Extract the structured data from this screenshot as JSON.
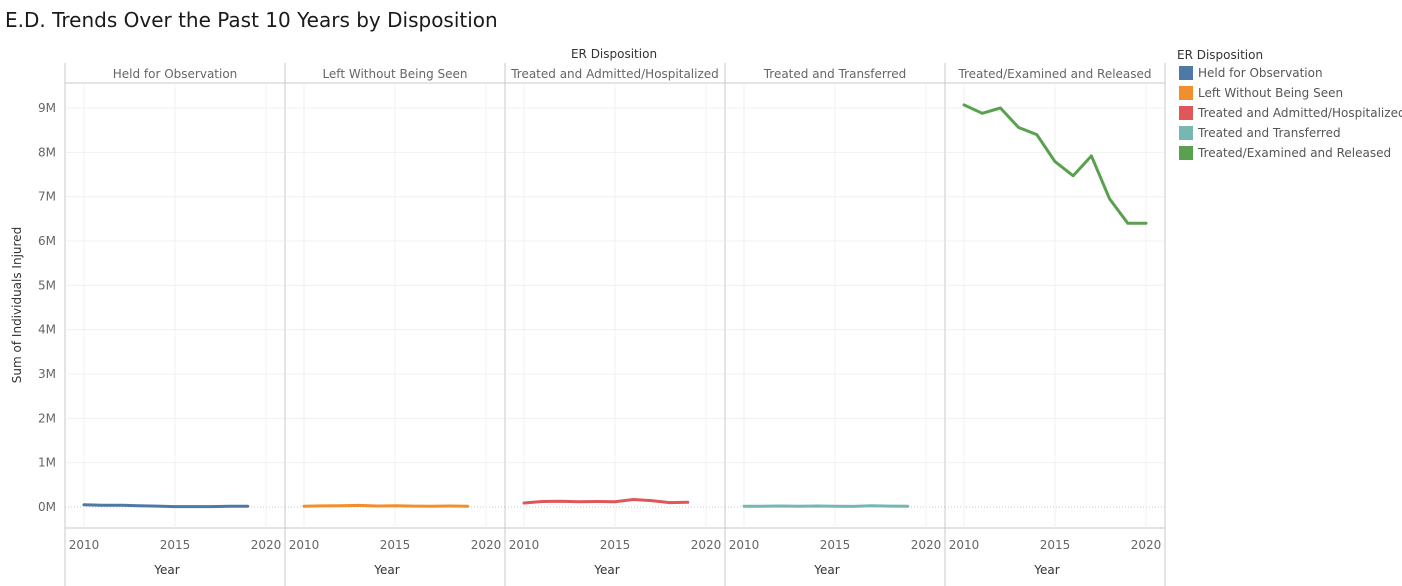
{
  "chart_data": {
    "type": "line",
    "title": "E.D. Trends Over the Past 10 Years by Disposition",
    "column_header": "ER Disposition",
    "xlabel": "Year",
    "ylabel": "Sum of Individuals Injured",
    "xlim": [
      2010,
      2020
    ],
    "ylim": [
      0,
      9500000
    ],
    "x_ticks": [
      2010,
      2015,
      2020
    ],
    "y_ticks": [
      {
        "value": 0,
        "label": "0M"
      },
      {
        "value": 1000000,
        "label": "1M"
      },
      {
        "value": 2000000,
        "label": "2M"
      },
      {
        "value": 3000000,
        "label": "3M"
      },
      {
        "value": 4000000,
        "label": "4M"
      },
      {
        "value": 5000000,
        "label": "5M"
      },
      {
        "value": 6000000,
        "label": "6M"
      },
      {
        "value": 7000000,
        "label": "7M"
      },
      {
        "value": 8000000,
        "label": "8M"
      },
      {
        "value": 9000000,
        "label": "9M"
      }
    ],
    "x": [
      2010,
      2011,
      2012,
      2013,
      2014,
      2015,
      2016,
      2017,
      2018,
      2019
    ],
    "legend_title": "ER Disposition",
    "legend_position": "right",
    "grid": true,
    "series": [
      {
        "name": "Held for Observation",
        "color": "#4e79a7",
        "x": [
          2010,
          2011,
          2012,
          2013,
          2014,
          2015,
          2016,
          2017,
          2018,
          2019
        ],
        "values": [
          50000,
          38000,
          40000,
          30000,
          20000,
          10000,
          8000,
          9000,
          18000,
          15000
        ]
      },
      {
        "name": "Left Without Being Seen",
        "color": "#f28e2b",
        "x": [
          2010,
          2011,
          2012,
          2013,
          2014,
          2015,
          2016,
          2017,
          2018,
          2019
        ],
        "values": [
          18000,
          25000,
          30000,
          35000,
          22000,
          28000,
          20000,
          18000,
          22000,
          18000
        ]
      },
      {
        "name": "Treated and Admitted/Hospitalized",
        "color": "#e15759",
        "x": [
          2010,
          2011,
          2012,
          2013,
          2014,
          2015,
          2016,
          2017,
          2018,
          2019
        ],
        "values": [
          90000,
          125000,
          130000,
          120000,
          125000,
          120000,
          170000,
          145000,
          100000,
          105000
        ]
      },
      {
        "name": "Treated and Transferred",
        "color": "#76b7b2",
        "x": [
          2010,
          2011,
          2012,
          2013,
          2014,
          2015,
          2016,
          2017,
          2018,
          2019
        ],
        "values": [
          15000,
          18000,
          22000,
          16000,
          22000,
          18000,
          14000,
          30000,
          20000,
          15000
        ]
      },
      {
        "name": "Treated/Examined and Released",
        "color": "#59a14f",
        "x": [
          2010,
          2011,
          2012,
          2013,
          2014,
          2015,
          2016,
          2017,
          2018,
          2019,
          2020
        ],
        "values": [
          9070000,
          8880000,
          9000000,
          8560000,
          8400000,
          7790000,
          7470000,
          7920000,
          6950000,
          6400000,
          6400000
        ]
      }
    ]
  }
}
